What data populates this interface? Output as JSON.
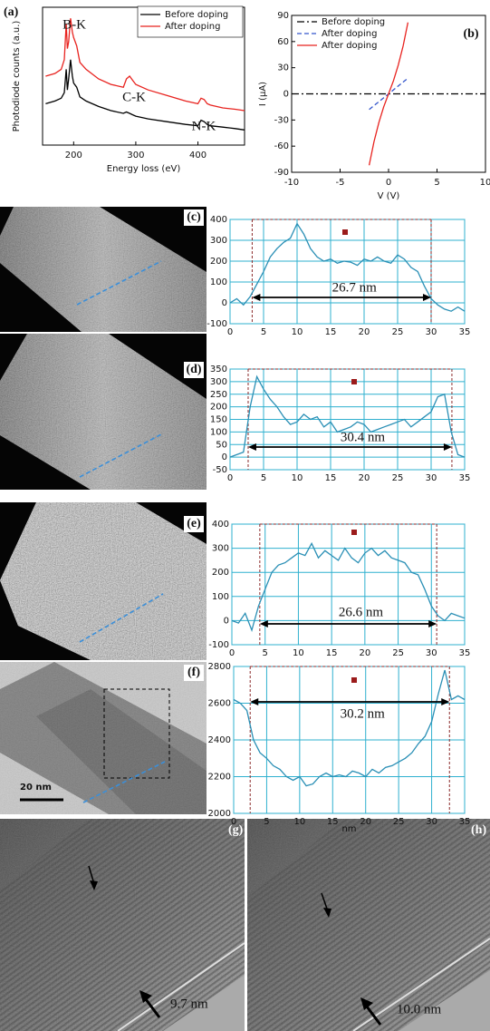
{
  "chart_data": [
    {
      "type": "line",
      "panel_label": "(a)",
      "x_label": "Energy loss (eV)",
      "y_label": "Photodiode counts (a.u.)",
      "x": [
        155,
        170,
        180,
        185,
        188,
        190,
        192,
        195,
        198,
        200,
        205,
        210,
        220,
        240,
        260,
        280,
        285,
        290,
        295,
        300,
        320,
        350,
        380,
        400,
        405,
        410,
        415,
        420,
        440,
        460,
        475
      ],
      "xlim": [
        150,
        475
      ],
      "xticks": [
        200,
        300,
        400
      ],
      "ylim": [
        0,
        100
      ],
      "legend": "upper right",
      "annotations": [
        "B-K",
        "C-K",
        "N-K"
      ],
      "series": [
        {
          "name": "Before doping",
          "color": "#000000",
          "line_style": "solid",
          "values": [
            30,
            32,
            34,
            38,
            55,
            40,
            48,
            62,
            50,
            45,
            42,
            35,
            32,
            28,
            25,
            23,
            24,
            23,
            22,
            21,
            19,
            17,
            15,
            14,
            18,
            17,
            15,
            14,
            13,
            12,
            11
          ]
        },
        {
          "name": "After doping",
          "color": "#e8231f",
          "line_style": "solid",
          "values": [
            50,
            52,
            55,
            62,
            88,
            70,
            75,
            92,
            82,
            78,
            72,
            60,
            55,
            48,
            44,
            42,
            48,
            50,
            47,
            44,
            40,
            36,
            32,
            30,
            34,
            33,
            30,
            29,
            27,
            26,
            25
          ]
        }
      ]
    },
    {
      "type": "line",
      "panel_label": "(b)",
      "x_label": "V (V)",
      "y_label": "I (μA)",
      "xlim": [
        -10,
        10
      ],
      "xticks": [
        -10,
        -5,
        0,
        5,
        10
      ],
      "ylim": [
        -90,
        90
      ],
      "yticks": [
        -90,
        -60,
        -30,
        0,
        30,
        60,
        90
      ],
      "legend": "upper left",
      "series": [
        {
          "name": "Before doping",
          "color": "#000000",
          "line_style": "dashdot",
          "x": [
            -10,
            10
          ],
          "values": [
            0,
            0
          ]
        },
        {
          "name": "After doping",
          "color": "#3355cc",
          "line_style": "dashed",
          "x": [
            -2,
            2
          ],
          "values": [
            -18,
            18
          ]
        },
        {
          "name": "After doping",
          "color": "#e8231f",
          "line_style": "solid",
          "x": [
            -2,
            -1.5,
            -1,
            -0.5,
            0,
            0.5,
            1,
            1.5,
            2
          ],
          "values": [
            -82,
            -55,
            -33,
            -15,
            0,
            15,
            33,
            55,
            82
          ]
        }
      ]
    },
    {
      "type": "line",
      "panel_label": "(c)",
      "color": "#2a8fb5",
      "grid": true,
      "annotation": "26.7 nm",
      "markers": [
        3.3,
        30.0
      ],
      "x": [
        0,
        1,
        2,
        3,
        4,
        5,
        6,
        7,
        8,
        9,
        10,
        11,
        12,
        13,
        14,
        15,
        16,
        17,
        18,
        19,
        20,
        21,
        22,
        23,
        24,
        25,
        26,
        27,
        28,
        29,
        30,
        31,
        32,
        33,
        34,
        35
      ],
      "values": [
        0,
        20,
        -10,
        30,
        90,
        150,
        220,
        260,
        290,
        310,
        380,
        330,
        260,
        220,
        200,
        210,
        190,
        200,
        195,
        180,
        210,
        200,
        220,
        200,
        190,
        230,
        210,
        170,
        150,
        80,
        20,
        -10,
        -30,
        -40,
        -20,
        -40
      ],
      "xlim": [
        0,
        35
      ],
      "xticks": [
        0,
        5,
        10,
        15,
        20,
        25,
        30,
        35
      ],
      "ylim": [
        -100,
        400
      ],
      "yticks": [
        -100,
        0,
        100,
        200,
        300,
        400
      ]
    },
    {
      "type": "line",
      "panel_label": "(d)",
      "color": "#2a8fb5",
      "grid": true,
      "annotation": "30.4 nm",
      "markers": [
        2.7,
        33.1
      ],
      "x": [
        0,
        1,
        2,
        3,
        4,
        5,
        6,
        7,
        8,
        9,
        10,
        11,
        12,
        13,
        14,
        15,
        16,
        17,
        18,
        19,
        20,
        21,
        22,
        23,
        24,
        25,
        26,
        27,
        28,
        29,
        30,
        31,
        32,
        33,
        34,
        35
      ],
      "values": [
        0,
        10,
        20,
        200,
        320,
        270,
        230,
        200,
        160,
        130,
        140,
        170,
        150,
        160,
        120,
        140,
        100,
        110,
        120,
        140,
        130,
        100,
        110,
        120,
        130,
        140,
        150,
        120,
        140,
        160,
        180,
        240,
        250,
        100,
        10,
        0
      ],
      "xlim": [
        0,
        35
      ],
      "xticks": [
        0,
        5,
        10,
        15,
        20,
        25,
        30,
        35
      ],
      "ylim": [
        -50,
        350
      ],
      "yticks": [
        -50,
        0,
        50,
        100,
        150,
        200,
        250,
        300,
        350
      ]
    },
    {
      "type": "line",
      "panel_label": "(e)",
      "color": "#2a8fb5",
      "grid": true,
      "annotation": "26.6 nm",
      "markers": [
        4.2,
        30.8
      ],
      "x": [
        0,
        1,
        2,
        3,
        4,
        5,
        6,
        7,
        8,
        9,
        10,
        11,
        12,
        13,
        14,
        15,
        16,
        17,
        18,
        19,
        20,
        21,
        22,
        23,
        24,
        25,
        26,
        27,
        28,
        29,
        30,
        31,
        32,
        33,
        34,
        35
      ],
      "values": [
        0,
        -10,
        30,
        -40,
        60,
        130,
        200,
        230,
        240,
        260,
        280,
        270,
        320,
        260,
        290,
        270,
        250,
        300,
        260,
        240,
        280,
        300,
        270,
        290,
        260,
        250,
        240,
        200,
        190,
        130,
        60,
        20,
        0,
        30,
        20,
        10
      ],
      "xlim": [
        0,
        35
      ],
      "xticks": [
        0,
        5,
        10,
        15,
        20,
        25,
        30,
        35
      ],
      "ylim": [
        -100,
        400
      ],
      "yticks": [
        -100,
        0,
        100,
        200,
        300,
        400
      ]
    },
    {
      "type": "line",
      "panel_label": "(f)",
      "color": "#2a8fb5",
      "grid": true,
      "annotation": "30.2 nm",
      "markers": [
        2.5,
        32.7
      ],
      "x_label": "nm",
      "x": [
        0,
        1,
        2,
        3,
        4,
        5,
        6,
        7,
        8,
        9,
        10,
        11,
        12,
        13,
        14,
        15,
        16,
        17,
        18,
        19,
        20,
        21,
        22,
        23,
        24,
        25,
        26,
        27,
        28,
        29,
        30,
        31,
        32,
        33,
        34,
        35
      ],
      "values": [
        2620,
        2600,
        2560,
        2400,
        2330,
        2300,
        2260,
        2240,
        2200,
        2180,
        2200,
        2150,
        2160,
        2200,
        2220,
        2200,
        2210,
        2200,
        2230,
        2220,
        2200,
        2240,
        2220,
        2250,
        2260,
        2280,
        2300,
        2330,
        2380,
        2420,
        2500,
        2650,
        2780,
        2620,
        2640,
        2620
      ],
      "xlim": [
        0,
        35
      ],
      "xticks": [
        0,
        5,
        10,
        15,
        20,
        25,
        30,
        35
      ],
      "ylim": [
        2000,
        2800
      ],
      "yticks": [
        2000,
        2200,
        2400,
        2600,
        2800
      ]
    }
  ],
  "micrographs": [
    {
      "label": "(g)",
      "annotation": "9.7 nm"
    },
    {
      "label": "(h)",
      "annotation": "10.0 nm"
    }
  ],
  "scale_bar": "20 nm"
}
